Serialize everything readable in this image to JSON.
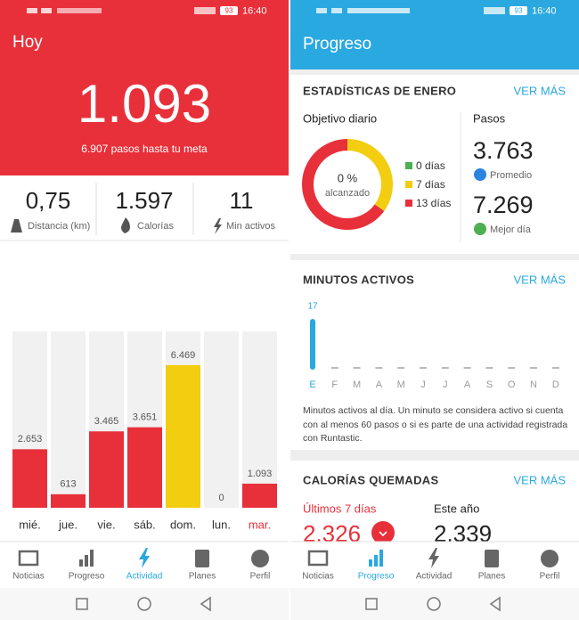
{
  "left": {
    "status": {
      "battery": "93",
      "time": "16:40"
    },
    "header": {
      "title": "Hoy",
      "steps": "1.093",
      "subtitle": "6.907 pasos hasta tu meta"
    },
    "stats": [
      {
        "value": "0,75",
        "label": "Distancia (km)"
      },
      {
        "value": "1.597",
        "label": "Calorías"
      },
      {
        "value": "11",
        "label": "Min activos"
      }
    ],
    "nav": [
      "Noticias",
      "Progreso",
      "Actividad",
      "Planes",
      "Perfil"
    ]
  },
  "right": {
    "status": {
      "battery": "93",
      "time": "16:40"
    },
    "header": {
      "title": "Progreso"
    },
    "stats_card": {
      "title": "ESTADÍSTICAS DE ENERO",
      "link": "VER MÁS",
      "goal_title": "Objetivo diario",
      "steps_title": "Pasos",
      "average": "3.763",
      "average_label": "Promedio",
      "best": "7.269",
      "best_label": "Mejor día"
    },
    "minutes_card": {
      "title": "MINUTOS ACTIVOS",
      "link": "VER MÁS",
      "description": [
        "Minutos activos al día. Un minuto se considera activo si cuenta",
        "con al menos 60 pasos o si es parte de una actividad registrada",
        "con Runtastic."
      ]
    },
    "calories_card": {
      "title": "CALORÍAS QUEMADAS",
      "link": "VER MÁS",
      "last7_label": "Últimos 7 días",
      "last7": "2.326",
      "year_label": "Este año",
      "year": "2.339"
    },
    "nav": [
      "Noticias",
      "Progreso",
      "Actividad",
      "Planes",
      "Perfil"
    ]
  },
  "chart_data": [
    {
      "type": "bar",
      "categories": [
        "mié.",
        "jue.",
        "vie.",
        "sáb.",
        "dom.",
        "lun.",
        "mar."
      ],
      "values": [
        2653,
        613,
        3465,
        3651,
        6469,
        0,
        1093
      ],
      "value_labels": [
        "2.653",
        "613",
        "3.465",
        "3.651",
        "6.469",
        "0",
        "1.093"
      ],
      "colors": [
        "#e8303a",
        "#e8303a",
        "#e8303a",
        "#e8303a",
        "#f3cd0f",
        "#e8303a",
        "#e8303a"
      ],
      "category_colors": [
        "#333333",
        "#333333",
        "#333333",
        "#333333",
        "#333333",
        "#333333",
        "#e8303a"
      ],
      "ylim": [
        0,
        8000
      ]
    },
    {
      "type": "pie",
      "values": [
        0,
        7,
        13
      ],
      "value_labels": [
        "0 días",
        "7 días",
        "13 días"
      ],
      "colors": [
        "#4caf50",
        "#f3cd0f",
        "#e8303a"
      ],
      "center_value": "0 %",
      "center_label": "alcanzado"
    },
    {
      "type": "bar",
      "categories": [
        "E",
        "F",
        "M",
        "A",
        "M",
        "J",
        "J",
        "A",
        "S",
        "O",
        "N",
        "D"
      ],
      "values": [
        17,
        null,
        null,
        null,
        null,
        null,
        null,
        null,
        null,
        null,
        null,
        null
      ],
      "color": "#2aa8e0",
      "category_colors": [
        "#2aa8e0",
        "#999999",
        "#999999",
        "#999999",
        "#999999",
        "#999999",
        "#999999",
        "#999999",
        "#999999",
        "#999999",
        "#999999",
        "#999999"
      ],
      "ylim": [
        0,
        17
      ]
    }
  ]
}
